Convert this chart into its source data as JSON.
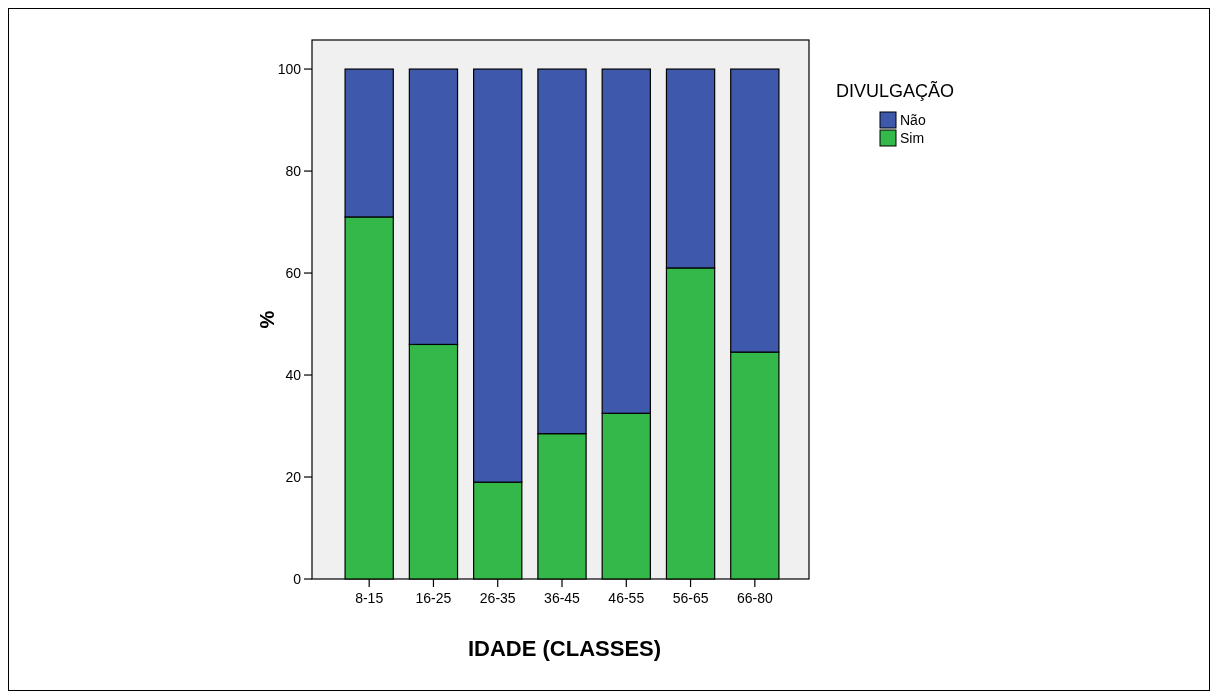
{
  "chart_data": {
    "type": "bar",
    "stacked": true,
    "xlabel": "IDADE (CLASSES)",
    "ylabel": "%",
    "legend_title": "DIVULGAÇÃO",
    "legend": "right",
    "categories": [
      "8-15",
      "16-25",
      "26-35",
      "36-45",
      "46-55",
      "56-65",
      "66-80"
    ],
    "series": [
      {
        "name": "Sim",
        "color": "#35b84a",
        "values": [
          71,
          46,
          19,
          28.5,
          32.5,
          61,
          44.5
        ]
      },
      {
        "name": "Não",
        "color": "#3e59ab",
        "values": [
          29,
          54,
          81,
          71.5,
          67.5,
          39,
          55.5
        ]
      }
    ],
    "ylim": [
      0,
      105.7
    ],
    "yticks": [
      0,
      20,
      40,
      60,
      80,
      100
    ],
    "grid": false
  }
}
